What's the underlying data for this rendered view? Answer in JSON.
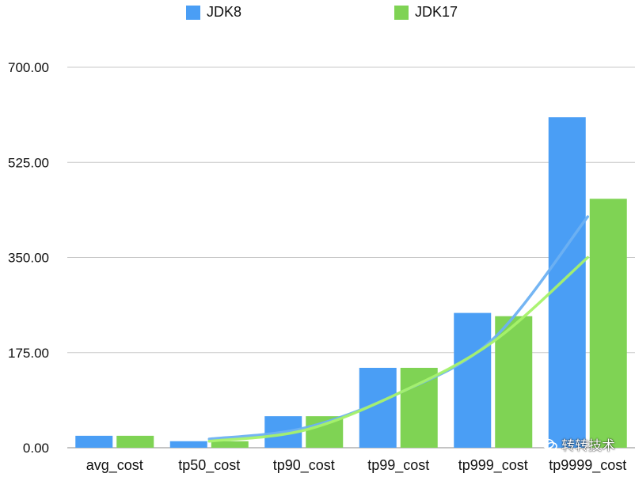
{
  "chart_data": {
    "type": "bar",
    "title": "",
    "categories": [
      "avg_cost",
      "tp50_cost",
      "tp90_cost",
      "tp99_cost",
      "tp999_cost",
      "tp9999_cost"
    ],
    "series": [
      {
        "name": "JDK8",
        "color": "#4A9EF5",
        "values": [
          22,
          12,
          58,
          147,
          248,
          608
        ]
      },
      {
        "name": "JDK17",
        "color": "#7FD354",
        "values": [
          22,
          12,
          58,
          147,
          242,
          458
        ]
      }
    ],
    "trendlines": [
      {
        "name": "JDK8",
        "color": "#6DB1F2",
        "values": [
          16,
          36,
          100,
          200,
          425
        ]
      },
      {
        "name": "JDK17",
        "color": "#A6F26A",
        "values": [
          12,
          32,
          100,
          195,
          350
        ]
      }
    ],
    "y_ticks": [
      "0.00",
      "175.00",
      "350.00",
      "525.00",
      "700.00"
    ],
    "ylim": [
      0,
      700
    ],
    "grid": true,
    "legend_position": "top"
  },
  "watermark": {
    "text": "转转技术",
    "icon": "wechat-icon"
  }
}
